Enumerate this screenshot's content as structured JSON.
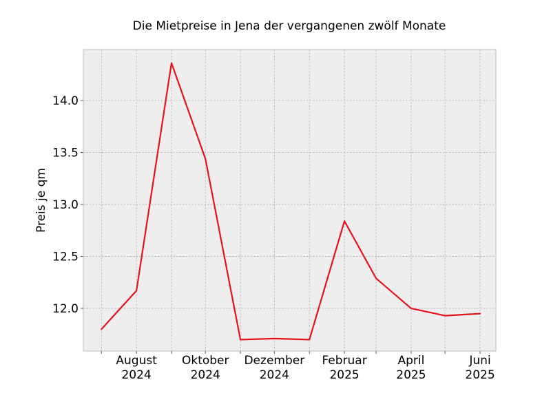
{
  "chart_data": {
    "type": "line",
    "title": "Die Mietpreise in Jena der vergangenen zwölf Monate",
    "xlabel": "",
    "ylabel": "Preis je qm",
    "x": [
      "2024-07",
      "2024-08",
      "2024-09",
      "2024-10",
      "2024-11",
      "2024-12",
      "2025-01",
      "2025-02",
      "2025-03",
      "2025-04",
      "2025-05",
      "2025-06"
    ],
    "series": [
      {
        "values": [
          11.8,
          12.17,
          14.36,
          13.44,
          11.7,
          11.71,
          11.7,
          12.84,
          12.29,
          12.0,
          11.93,
          11.95
        ],
        "color": "#e3121b"
      }
    ],
    "ylim": [
      11.59,
      14.49
    ],
    "xlim": [
      "2024-06-15",
      "2025-06-15"
    ],
    "yticks": [
      12.0,
      12.5,
      13.0,
      13.5,
      14.0
    ],
    "ytick_labels": [
      "12.0",
      "12.5",
      "13.0",
      "13.5",
      "14.0"
    ],
    "xtick_labels": [
      {
        "x": "2024-08",
        "line1": "August",
        "line2": "2024"
      },
      {
        "x": "2024-10",
        "line1": "Oktober",
        "line2": "2024"
      },
      {
        "x": "2024-12",
        "line1": "Dezember",
        "line2": "2024"
      },
      {
        "x": "2025-02",
        "line1": "Februar",
        "line2": "2025"
      },
      {
        "x": "2025-04",
        "line1": "April",
        "line2": "2025"
      },
      {
        "x": "2025-06",
        "line1": "Juni",
        "line2": "2025"
      }
    ],
    "grid": true,
    "style": {
      "plot_background": "#eeeeee",
      "grid_color": "#b2b2b2",
      "frame_color": "#bcbcbc"
    }
  }
}
